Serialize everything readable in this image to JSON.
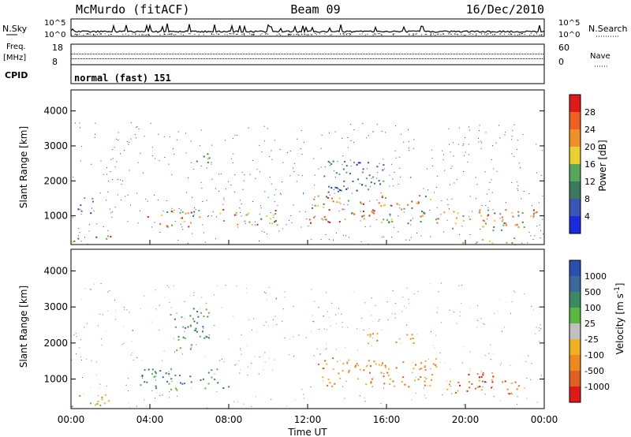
{
  "header": {
    "station": "McMurdo (fitACF)",
    "beam": "Beam 09",
    "date": "16/Dec/2010",
    "cpid_label": "CPID",
    "mode": "normal (fast) 151"
  },
  "colors": {
    "power_scale": [
      "#1a2bdc",
      "#3a55b8",
      "#3c7a5c",
      "#55a85a",
      "#e8d030",
      "#f29028",
      "#ee6020",
      "#e01818"
    ],
    "velocity_scale": [
      "#2a4fb0",
      "#3a6a9a",
      "#3c8a60",
      "#58b840",
      "#c0c0c0",
      "#f0b020",
      "#f08820",
      "#e06020",
      "#e01818"
    ]
  },
  "chart_data": [
    {
      "type": "line",
      "panel": "noise",
      "left_label": "N.Sky",
      "left_ticks": [
        "10^5",
        "10^0"
      ],
      "right_label": "N.Search",
      "right_ticks": [
        "10^5",
        "10^0"
      ],
      "scale": "log"
    },
    {
      "type": "scatter",
      "panel": "frequency",
      "left_label": "Freq.",
      "left_unit": "[MHz]",
      "left_ticks": [
        "18",
        "8"
      ],
      "right_label": "Nave",
      "right_ticks": [
        "60",
        "0"
      ],
      "ylim": [
        8,
        18
      ]
    },
    {
      "type": "heatmap",
      "panel": "power",
      "ylabel": "Slant Range [km]",
      "yticks": [
        1000,
        2000,
        3000,
        4000
      ],
      "ylim": [
        180,
        4600
      ],
      "colorbar_label": "Power [dB]",
      "colorbar_ticks": [
        "4",
        "8",
        "12",
        "16",
        "20",
        "24",
        "28"
      ],
      "clim": [
        0,
        32
      ],
      "echo_regions": [
        {
          "t": [
            0.0,
            2.0
          ],
          "r": [
            250,
            450
          ],
          "level": "high"
        },
        {
          "t": [
            0.3,
            1.2
          ],
          "r": [
            1100,
            1600
          ],
          "level": "low"
        },
        {
          "t": [
            3.8,
            6.5
          ],
          "r": [
            700,
            1200
          ],
          "level": "high"
        },
        {
          "t": [
            6.3,
            7.0
          ],
          "r": [
            2400,
            2900
          ],
          "level": "medium"
        },
        {
          "t": [
            7.5,
            10.5
          ],
          "r": [
            750,
            1200
          ],
          "level": "high"
        },
        {
          "t": [
            12.0,
            18.2
          ],
          "r": [
            800,
            1600
          ],
          "level": "high"
        },
        {
          "t": [
            12.8,
            16.0
          ],
          "r": [
            1700,
            2600
          ],
          "level": "low"
        },
        {
          "t": [
            18.3,
            23.6
          ],
          "r": [
            600,
            1200
          ],
          "level": "high"
        },
        {
          "t": [
            19.8,
            22.5
          ],
          "r": [
            230,
            400
          ],
          "level": "high"
        }
      ]
    },
    {
      "type": "heatmap",
      "panel": "velocity",
      "ylabel": "Slant Range [km]",
      "yticks": [
        1000,
        2000,
        3000,
        4000
      ],
      "ylim": [
        180,
        4600
      ],
      "colorbar_label": "Velocity [m s^-1]",
      "colorbar_ticks": [
        "1000",
        "500",
        "100",
        "25",
        "-25",
        "-100",
        "-500",
        "-1000"
      ],
      "clim": [
        -1000,
        1000
      ],
      "xlabel": "Time UT",
      "xticks": [
        "00:00",
        "04:00",
        "08:00",
        "12:00",
        "16:00",
        "20:00",
        "00:00"
      ],
      "xlim_hours": [
        0,
        24
      ],
      "echo_regions": [
        {
          "t": [
            0.0,
            2.0
          ],
          "r": [
            250,
            600
          ],
          "velocity": "-25 to 100"
        },
        {
          "t": [
            3.5,
            8.0
          ],
          "r": [
            700,
            1300
          ],
          "velocity": "100 to 500"
        },
        {
          "t": [
            5.0,
            7.0
          ],
          "r": [
            1800,
            3000
          ],
          "velocity": "100 to 500"
        },
        {
          "t": [
            12.5,
            18.5
          ],
          "r": [
            800,
            1600
          ],
          "velocity": "-100 to -500"
        },
        {
          "t": [
            15.0,
            17.5
          ],
          "r": [
            2000,
            2300
          ],
          "velocity": "-100 to -500"
        },
        {
          "t": [
            19.0,
            22.8
          ],
          "r": [
            600,
            1200
          ],
          "velocity": "-100 to -1000"
        }
      ]
    }
  ]
}
